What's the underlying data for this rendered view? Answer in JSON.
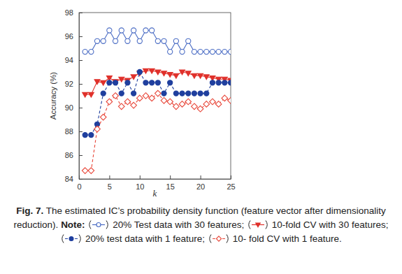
{
  "chart_data": {
    "type": "line",
    "figure_label": "Fig. 7.",
    "title": "The estimated IC’s probability density function (feature vector after dimensionality reduction).",
    "note": "Note:",
    "legend_separator": ";",
    "legend_end": ".",
    "x_label": "k",
    "y_label": "Accuracy (%)",
    "x": [
      1,
      2,
      3,
      4,
      5,
      6,
      7,
      8,
      9,
      10,
      11,
      12,
      13,
      14,
      15,
      16,
      17,
      18,
      19,
      20,
      21,
      22,
      23,
      24,
      25
    ],
    "xlim": [
      0,
      25
    ],
    "xticks": [
      0,
      5,
      10,
      15,
      20,
      25
    ],
    "ylim": [
      84,
      98
    ],
    "yticks": [
      84,
      86,
      88,
      90,
      92,
      94,
      96,
      98
    ],
    "grid": false,
    "series": [
      {
        "name": "20% Test data with 30 features",
        "color": "#4a6cc4",
        "marker": "circle-open",
        "line_style": "solid",
        "values": [
          94.7,
          94.7,
          95.6,
          95.6,
          96.5,
          95.6,
          96.5,
          95.6,
          96.5,
          95.6,
          96.5,
          96.5,
          95.6,
          95.6,
          94.7,
          95.6,
          94.7,
          95.6,
          94.7,
          94.7,
          94.7,
          94.7,
          94.7,
          94.7,
          94.7
        ]
      },
      {
        "name": "10-fold CV with 30 features",
        "color": "#e0312b",
        "marker": "triangle-down",
        "line_style": "solid",
        "values": [
          91.1,
          91.1,
          92.2,
          92.1,
          92.5,
          92.2,
          92.4,
          92.3,
          92.6,
          92.9,
          93.1,
          93.1,
          93.0,
          92.9,
          92.8,
          92.7,
          93.0,
          92.9,
          92.7,
          92.7,
          92.6,
          92.5,
          92.4,
          92.4,
          92.3
        ]
      },
      {
        "name": "20% test data with 1 feature",
        "color": "#1f3f9e",
        "marker": "circle",
        "line_style": "dashed",
        "values": [
          87.7,
          87.7,
          88.6,
          91.2,
          92.1,
          92.1,
          91.2,
          92.1,
          91.2,
          93.0,
          92.1,
          92.1,
          92.1,
          91.2,
          92.1,
          91.2,
          91.2,
          91.2,
          91.2,
          91.2,
          91.2,
          92.1,
          92.1,
          92.1,
          92.1
        ]
      },
      {
        "name": "10- fold CV with 1 feature",
        "color": "#e8473a",
        "marker": "diamond-open",
        "line_style": "dashed",
        "values": [
          84.7,
          84.7,
          88.2,
          89.2,
          90.5,
          91.0,
          90.1,
          90.5,
          90.2,
          90.8,
          91.0,
          90.8,
          91.2,
          90.6,
          90.5,
          90.1,
          90.3,
          90.5,
          90.1,
          89.9,
          90.3,
          90.5,
          90.3,
          90.8,
          90.6
        ]
      }
    ]
  }
}
